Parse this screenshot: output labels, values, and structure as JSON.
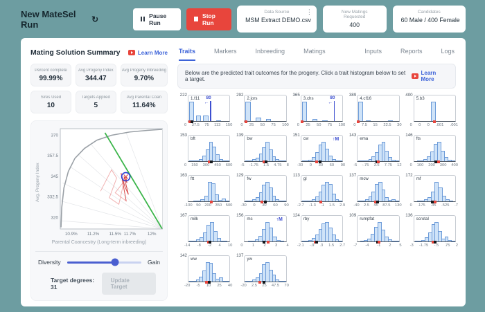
{
  "colors": {
    "teal_bg": "#6d9da1",
    "accent_blue": "#3d63d8",
    "danger_red": "#e8453c",
    "slider_blue": "#4a5fd0",
    "bar_fill": "#cfe3f8",
    "bar_edge": "#6b9ad8",
    "green_line": "#3bb54a",
    "frontier_gray": "#9aa0a6",
    "path_red": "#e05353"
  },
  "topbar": {
    "title": "New MateSel Run",
    "refresh_icon": "refresh",
    "pause_label": "Pause Run",
    "stop_label": "Stop Run",
    "cards": [
      {
        "label": "Data Source",
        "value": "MSM Extract DEMO.csv",
        "menu": true
      },
      {
        "label": "New Matings Requested",
        "value": "400",
        "menu": false
      },
      {
        "label": "Candidates",
        "value": "60 Male / 400 Female",
        "menu": false
      }
    ]
  },
  "summary": {
    "title": "Mating Solution Summary",
    "learn_more": "Learn More",
    "stats": [
      {
        "label": "Percent complete",
        "value": "99.99%"
      },
      {
        "label": "Avg Progeny Index",
        "value": "344.47"
      },
      {
        "label": "Avg Progeny Inbreeding",
        "value": "9.70%"
      },
      {
        "label": "Sires Used",
        "value": "10"
      },
      {
        "label": "Targets Applied",
        "value": "5"
      },
      {
        "label": "Avg Parental Coan",
        "value": "11.64%"
      }
    ],
    "slider": {
      "left": "Diversity",
      "right": "Gain",
      "value_pct": 65
    },
    "target": {
      "label": "Target degrees: 31",
      "button": "Update Target",
      "disabled": true
    }
  },
  "tabs": {
    "left": [
      "Traits",
      "Markers",
      "Inbreeding",
      "Matings"
    ],
    "right": [
      "Inputs",
      "Reports",
      "Logs"
    ],
    "active": "Traits"
  },
  "banner": {
    "text": "Below are the predicted trait outcomes for the progeny. Click a trait histogram below to set a target.",
    "learn_more": "Learn More"
  },
  "chart_data": {
    "frontier": {
      "type": "line",
      "xlabel": "Parental Coancestry (Long-term inbreeding)",
      "ylabel": "Avg. Progeny Index",
      "xlim": [
        10.75,
        12.15
      ],
      "ylim": [
        313,
        374
      ],
      "xticks": [
        10.9,
        11.2,
        11.5,
        11.7,
        12
      ],
      "xtick_labels": [
        "10.9%",
        "11.2%",
        "11.5%",
        "11.7%",
        "12%"
      ],
      "yticks": [
        370,
        357.5,
        345,
        332.5,
        320
      ],
      "frontier_points": [
        [
          10.76,
          314
        ],
        [
          10.77,
          326
        ],
        [
          10.8,
          338
        ],
        [
          10.86,
          348
        ],
        [
          10.95,
          356
        ],
        [
          11.08,
          362
        ],
        [
          11.25,
          367
        ],
        [
          11.45,
          370
        ],
        [
          11.7,
          372
        ],
        [
          11.95,
          373
        ],
        [
          12.14,
          373.6
        ]
      ],
      "target_line": [
        [
          11.36,
          371.5
        ],
        [
          12.14,
          313.2
        ]
      ],
      "fan_origin": [
        12.14,
        313.2
      ],
      "fan_targets": [
        [
          10.76,
          318
        ],
        [
          10.76,
          330
        ],
        [
          10.78,
          341
        ],
        [
          10.88,
          351
        ],
        [
          11.0,
          358
        ],
        [
          11.18,
          364
        ],
        [
          11.4,
          368.5
        ],
        [
          11.65,
          371.5
        ]
      ],
      "solution_path": [
        [
          11.3,
          336
        ],
        [
          11.45,
          349
        ],
        [
          11.52,
          344
        ],
        [
          11.42,
          332
        ],
        [
          11.55,
          328
        ],
        [
          11.62,
          342
        ],
        [
          11.5,
          335
        ],
        [
          11.65,
          330
        ],
        [
          11.58,
          347
        ],
        [
          11.63,
          339
        ],
        [
          11.68,
          334
        ],
        [
          11.62,
          345
        ],
        [
          11.66,
          341
        ],
        [
          11.645,
          344.8
        ]
      ],
      "current_point": [
        11.645,
        344.8
      ],
      "grid": false,
      "legend": null
    },
    "trait_histograms": {
      "type": "histogram",
      "items": [
        {
          "num": "222",
          "name": "1.f11",
          "ticks": [
            "0",
            "37.5",
            "75",
            "113",
            "150"
          ],
          "bars": [
            100,
            0,
            30,
            0,
            28,
            0,
            0,
            0,
            2,
            0,
            0,
            0
          ],
          "markers": [
            [
              "red",
              0.03
            ],
            [
              "black",
              0.08
            ]
          ],
          "annot": {
            "kind": "line",
            "x": 0.53,
            "text": "80"
          }
        },
        {
          "num": "292",
          "name": "2.jors",
          "ticks": [
            "0",
            "25",
            "50",
            "75",
            "100"
          ],
          "bars": [
            100,
            0,
            0,
            18,
            0,
            0,
            9,
            0,
            0,
            0,
            0,
            0
          ],
          "markers": [
            [
              "red",
              0.02
            ]
          ],
          "annot": null
        },
        {
          "num": "365",
          "name": "3.chs",
          "ticks": [
            "0",
            "25",
            "50",
            "75",
            "100"
          ],
          "bars": [
            100,
            0,
            0,
            9,
            0,
            0,
            5,
            0,
            0,
            0,
            0,
            0
          ],
          "markers": [
            [
              "red",
              0.02
            ]
          ],
          "annot": {
            "kind": "line",
            "x": 0.8,
            "text": "80"
          }
        },
        {
          "num": "389",
          "name": "4.cf16",
          "ticks": [
            "0",
            "7.5",
            "15",
            "22.5",
            "30"
          ],
          "bars": [
            100,
            0,
            2,
            0,
            0,
            0,
            0,
            0,
            0,
            2,
            0,
            0
          ],
          "markers": [
            [
              "red",
              0.01
            ]
          ],
          "annot": null
        },
        {
          "num": "400",
          "name": "5.b3",
          "ticks": [
            "0",
            "0",
            "0",
            ".001",
            ".001"
          ],
          "bars": [
            0,
            0,
            0,
            0,
            0,
            100,
            0,
            0,
            0,
            0,
            0,
            0
          ],
          "markers": [
            [
              "red",
              0.5
            ]
          ],
          "annot": null
        },
        {
          "num": "153",
          "name": "bft",
          "ticks": [
            "0",
            "150",
            "300",
            "450",
            "600"
          ],
          "bars": [
            1,
            2,
            5,
            12,
            28,
            60,
            100,
            75,
            35,
            12,
            4,
            1
          ],
          "markers": [
            [
              "red",
              0.5
            ],
            [
              "black",
              0.55
            ]
          ],
          "annot": null
        },
        {
          "num": "139",
          "name": "bw",
          "ticks": [
            "-5",
            "-1.75",
            "1.5",
            "4.75",
            "8"
          ],
          "bars": [
            2,
            4,
            9,
            18,
            38,
            70,
            100,
            60,
            25,
            9,
            3,
            1
          ],
          "markers": [
            [
              "red",
              0.47
            ],
            [
              "black",
              0.52
            ]
          ],
          "annot": null
        },
        {
          "num": "151",
          "name": "cw",
          "ticks": [
            "-30",
            "0",
            "30",
            "60",
            "90"
          ],
          "bars": [
            1,
            3,
            8,
            20,
            45,
            85,
            100,
            65,
            30,
            10,
            3,
            1
          ],
          "markers": [
            [
              "red",
              0.38
            ],
            [
              "black",
              0.45
            ]
          ],
          "annot": {
            "kind": "up",
            "text": "↑M"
          }
        },
        {
          "num": "143",
          "name": "ema",
          "ticks": [
            "-5",
            "-.75",
            "3.5",
            "7.75",
            "12"
          ],
          "bars": [
            1,
            2,
            5,
            11,
            24,
            48,
            85,
            100,
            55,
            20,
            6,
            2
          ],
          "markers": [
            [
              "black",
              0.46
            ],
            [
              "red",
              0.51
            ]
          ],
          "annot": null
        },
        {
          "num": "146",
          "name": "fts",
          "ticks": [
            "0",
            "100",
            "200",
            "300",
            "400"
          ],
          "bars": [
            0,
            1,
            4,
            10,
            24,
            50,
            90,
            100,
            55,
            20,
            6,
            1
          ],
          "markers": [
            [
              "black",
              0.53
            ],
            [
              "red",
              0.59
            ]
          ],
          "annot": null
        },
        {
          "num": "163",
          "name": "ftt",
          "ticks": [
            "-100",
            "50",
            "200",
            "350",
            "500"
          ],
          "bars": [
            0,
            0,
            1,
            4,
            10,
            28,
            100,
            92,
            35,
            8,
            16,
            2
          ],
          "markers": [
            [
              "red",
              0.55
            ]
          ],
          "annot": null
        },
        {
          "num": "129",
          "name": "fw",
          "ticks": [
            "-30",
            "0",
            "30",
            "60",
            "90"
          ],
          "bars": [
            1,
            4,
            10,
            22,
            48,
            85,
            100,
            70,
            30,
            10,
            3,
            1
          ],
          "markers": [
            [
              "red",
              0.42
            ],
            [
              "black",
              0.5
            ]
          ],
          "annot": null
        },
        {
          "num": "113",
          "name": "gl",
          "ticks": [
            "-2.7",
            "-1.3",
            ".1",
            "1.5",
            "2.9"
          ],
          "bars": [
            1,
            2,
            5,
            12,
            26,
            50,
            85,
            100,
            90,
            38,
            10,
            2
          ],
          "markers": [
            [
              "red",
              0.48
            ]
          ],
          "annot": null
        },
        {
          "num": "137",
          "name": "mcw",
          "ticks": [
            "-40",
            "2.5",
            "45",
            "87.5",
            "130"
          ],
          "bars": [
            1,
            4,
            10,
            24,
            50,
            90,
            100,
            60,
            22,
            7,
            9,
            2
          ],
          "markers": [
            [
              "red",
              0.44
            ],
            [
              "black",
              0.49
            ]
          ],
          "annot": null
        },
        {
          "num": "172",
          "name": "mf",
          "ticks": [
            "0",
            ".175",
            ".35",
            ".525",
            ".7"
          ],
          "bars": [
            0,
            1,
            4,
            10,
            22,
            50,
            100,
            72,
            30,
            9,
            3,
            0
          ],
          "markers": [
            [
              "black",
              0.45
            ],
            [
              "red",
              0.52
            ]
          ],
          "annot": null
        },
        {
          "num": "167",
          "name": "milk",
          "ticks": [
            "-14",
            "-8",
            "-2",
            "4",
            "10"
          ],
          "bars": [
            1,
            3,
            9,
            20,
            45,
            85,
            100,
            52,
            18,
            5,
            2,
            0
          ],
          "markers": [
            [
              "red",
              0.48
            ],
            [
              "black",
              0.52
            ]
          ],
          "annot": null
        },
        {
          "num": "156",
          "name": "ms",
          "ticks": [
            "0",
            "1",
            "2",
            "3",
            "4"
          ],
          "bars": [
            0,
            1,
            4,
            12,
            30,
            65,
            100,
            72,
            26,
            8,
            2,
            0
          ],
          "markers": [
            [
              "black",
              0.47
            ],
            [
              "red",
              0.56
            ]
          ],
          "annot": {
            "kind": "up",
            "text": "↑M"
          }
        },
        {
          "num": "124",
          "name": "rby",
          "ticks": [
            "-2.1",
            "-.9",
            ".3",
            "1.5",
            "2.7"
          ],
          "bars": [
            1,
            3,
            8,
            18,
            36,
            65,
            92,
            100,
            70,
            35,
            12,
            3
          ],
          "markers": [
            [
              "red",
              0.34
            ],
            [
              "black",
              0.38
            ]
          ],
          "annot": null
        },
        {
          "num": "109",
          "name": "rumpfat",
          "ticks": [
            "-7",
            "-4",
            "-1",
            "2",
            "5"
          ],
          "bars": [
            0,
            2,
            7,
            16,
            38,
            75,
            100,
            62,
            26,
            9,
            3,
            1
          ],
          "markers": [
            [
              "black",
              0.48
            ],
            [
              "red",
              0.52
            ]
          ],
          "annot": null
        },
        {
          "num": "136",
          "name": "scrotal",
          "ticks": [
            "-3",
            "-1.75",
            "-.5",
            ".75",
            "2"
          ],
          "bars": [
            1,
            2,
            7,
            20,
            48,
            88,
            100,
            55,
            16,
            24,
            8,
            2
          ],
          "markers": [
            [
              "red",
              0.46
            ],
            [
              "black",
              0.52
            ]
          ],
          "annot": null
        },
        {
          "num": "142",
          "name": "ww",
          "ticks": [
            "-20",
            "-5",
            "10",
            "25",
            "40"
          ],
          "bars": [
            1,
            4,
            11,
            26,
            58,
            100,
            95,
            42,
            16,
            20,
            5,
            1
          ],
          "markers": [
            [
              "red",
              0.44
            ],
            [
              "black",
              0.51
            ]
          ],
          "annot": null
        },
        {
          "num": "137",
          "name": "yw",
          "ticks": [
            "-20",
            "2.5",
            "25",
            "47.5",
            "70"
          ],
          "bars": [
            1,
            3,
            9,
            20,
            42,
            88,
            100,
            62,
            35,
            12,
            4,
            1
          ],
          "markers": [
            [
              "red",
              0.37
            ],
            [
              "black",
              0.47
            ]
          ],
          "annot": null
        }
      ]
    }
  }
}
